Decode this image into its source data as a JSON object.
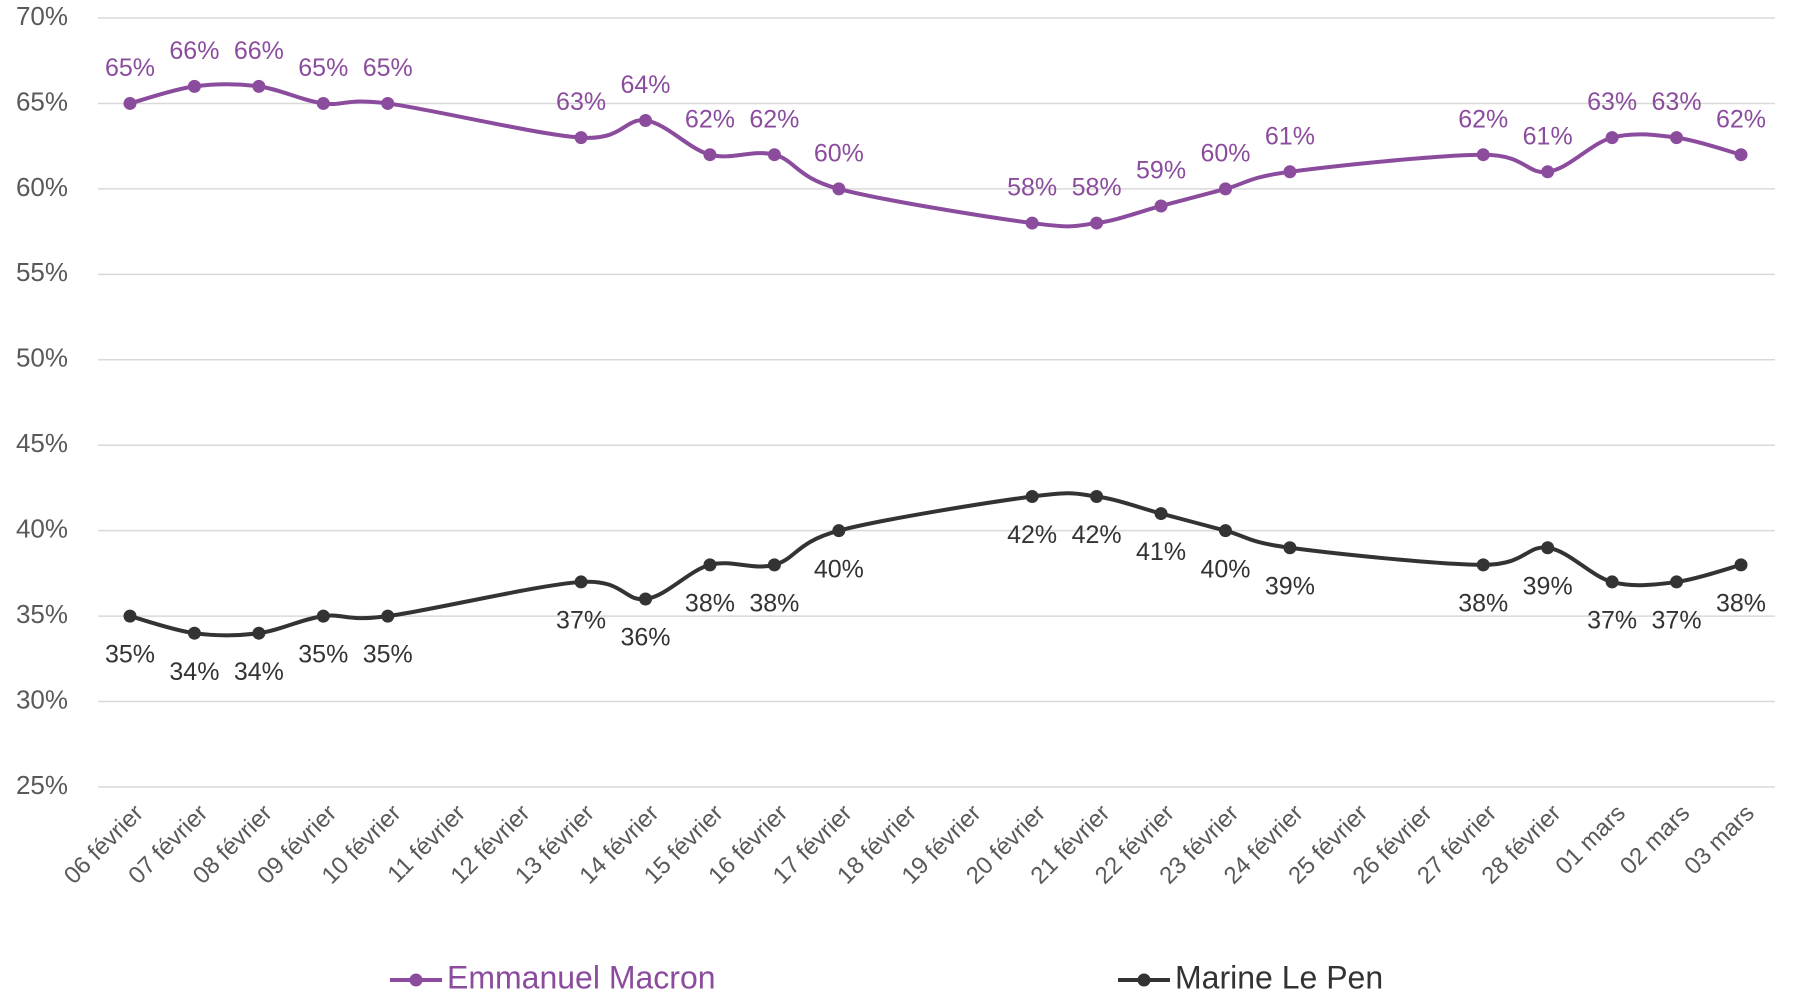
{
  "chart_data": {
    "type": "line",
    "categories": [
      "06 février",
      "07 février",
      "08 février",
      "09 février",
      "10 février",
      "11 février",
      "12 février",
      "13 février",
      "14 février",
      "15 février",
      "16 février",
      "17 février",
      "18 février",
      "19 février",
      "20 février",
      "21 février",
      "22 février",
      "23 février",
      "24 février",
      "25 février",
      "26 février",
      "27 février",
      "28 février",
      "01 mars",
      "02 mars",
      "03 mars"
    ],
    "series": [
      {
        "name": "Emmanuel Macron",
        "color": "#8b4c9d",
        "values": [
          65,
          66,
          66,
          65,
          65,
          null,
          null,
          63,
          64,
          62,
          62,
          60,
          null,
          null,
          58,
          58,
          59,
          60,
          61,
          null,
          null,
          62,
          61,
          63,
          63,
          62
        ],
        "value_labels": [
          "65%",
          "66%",
          "66%",
          "65%",
          "65%",
          null,
          null,
          "63%",
          "64%",
          "62%",
          "62%",
          "60%",
          null,
          null,
          "58%",
          "58%",
          "59%",
          "60%",
          "61%",
          null,
          null,
          "62%",
          "61%",
          "63%",
          "63%",
          "62%"
        ]
      },
      {
        "name": "Marine Le Pen",
        "color": "#333333",
        "values": [
          35,
          34,
          34,
          35,
          35,
          null,
          null,
          37,
          36,
          38,
          38,
          40,
          null,
          null,
          42,
          42,
          41,
          40,
          39,
          null,
          null,
          38,
          39,
          37,
          37,
          38
        ],
        "value_labels": [
          "35%",
          "34%",
          "34%",
          "35%",
          "35%",
          null,
          null,
          "37%",
          "36%",
          "38%",
          "38%",
          "40%",
          null,
          null,
          "42%",
          "42%",
          "41%",
          "40%",
          "39%",
          null,
          null,
          "38%",
          "39%",
          "37%",
          "37%",
          "38%"
        ]
      }
    ],
    "ylim": [
      25,
      70
    ],
    "yticks": [
      {
        "value": 25,
        "label": "25%"
      },
      {
        "value": 30,
        "label": "30%"
      },
      {
        "value": 35,
        "label": "35%"
      },
      {
        "value": 40,
        "label": "40%"
      },
      {
        "value": 45,
        "label": "45%"
      },
      {
        "value": 50,
        "label": "50%"
      },
      {
        "value": 55,
        "label": "55%"
      },
      {
        "value": 60,
        "label": "60%"
      },
      {
        "value": 65,
        "label": "65%"
      },
      {
        "value": 70,
        "label": "70%"
      }
    ],
    "grid": true,
    "legend": "bottom"
  }
}
